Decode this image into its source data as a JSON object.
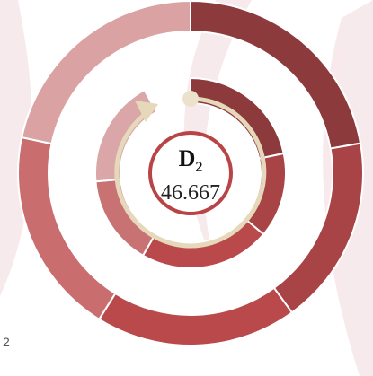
{
  "chart_data": {
    "type": "sunburst",
    "ylim": [
      0,
      360
    ],
    "center": {
      "label": "D",
      "label_sub": "2",
      "value": 46.667
    },
    "corner_label": "2",
    "series": [
      {
        "name": "outer",
        "values": [
          80,
          64,
          68,
          70,
          78
        ],
        "colors": [
          "#8c3a3c",
          "#a84446",
          "#b9494a",
          "#c96d6f",
          "#dba2a4"
        ]
      },
      {
        "name": "inner",
        "values": [
          78,
          52,
          80,
          55,
          66
        ],
        "colors": [
          "#8c3a3c",
          "#a84446",
          "#b9494a",
          "#c97274",
          "#dba6a8"
        ]
      }
    ]
  }
}
